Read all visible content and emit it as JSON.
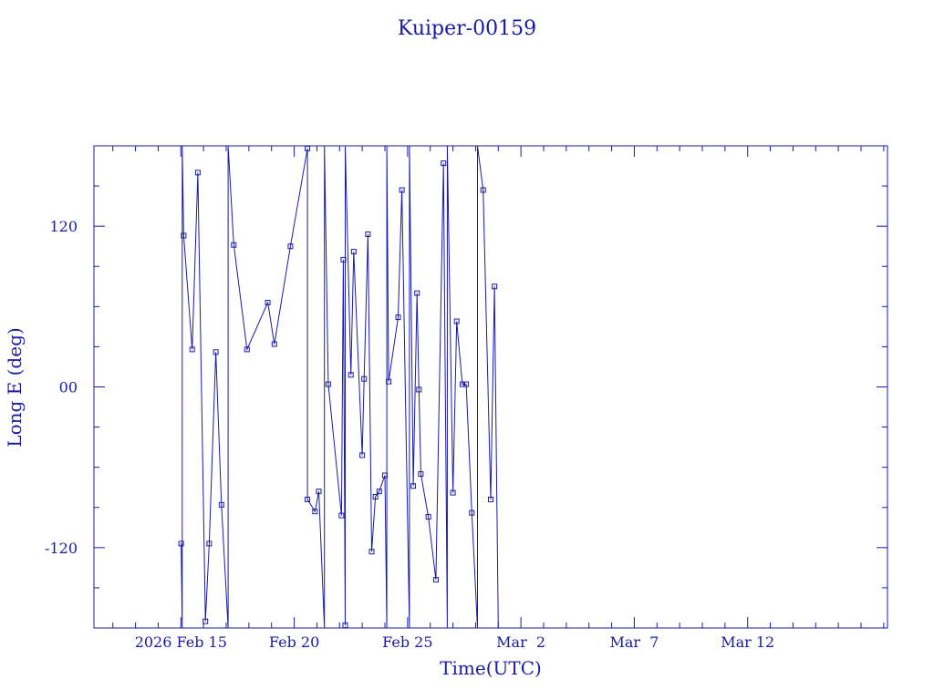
{
  "chart_data": {
    "type": "line",
    "title": "Kuiper-00159",
    "xlabel": "Time(UTC)",
    "ylabel": "Long E (deg)",
    "markers": "square",
    "color": "#1a1aa6",
    "grid": false,
    "xlim": [
      "2026-02-11T04:00",
      "2026-03-18T04:00"
    ],
    "ylim": [
      -180,
      180
    ],
    "x_tick_labels": [
      {
        "date": "2026-02-15",
        "label": "2026 Feb 15"
      },
      {
        "date": "2026-02-20",
        "label": "Feb 20"
      },
      {
        "date": "2026-02-25",
        "label": "Feb 25"
      },
      {
        "date": "2026-03-02",
        "label": "Mar  2"
      },
      {
        "date": "2026-03-07",
        "label": "Mar  7"
      },
      {
        "date": "2026-03-12",
        "label": "Mar 12"
      }
    ],
    "y_tick_labels": [
      {
        "value": -120,
        "label": "-120"
      },
      {
        "value": 0,
        "label": "00"
      },
      {
        "value": 120,
        "label": "120"
      }
    ],
    "series": [
      {
        "points": [
          [
            "2026-02-15T00:20",
            -117
          ],
          [
            "2026-02-15T01:30",
            -180
          ],
          [
            "2026-02-15T01:30",
            180
          ],
          [
            "2026-02-15T03:00",
            113
          ],
          [
            "2026-02-15T12:00",
            28
          ],
          [
            "2026-02-15T18:00",
            160
          ],
          [
            "2026-02-16T02:00",
            -175
          ],
          [
            "2026-02-16T06:00",
            -117
          ],
          [
            "2026-02-16T13:00",
            26
          ],
          [
            "2026-02-16T19:00",
            -88
          ],
          [
            "2026-02-17T02:00",
            -180
          ],
          [
            "2026-02-17T02:00",
            180
          ],
          [
            "2026-02-17T08:00",
            106
          ],
          [
            "2026-02-17T22:00",
            28
          ],
          [
            "2026-02-18T20:00",
            63
          ],
          [
            "2026-02-19T03:00",
            32
          ],
          [
            "2026-02-19T20:00",
            105
          ],
          [
            "2026-02-20T14:00",
            178
          ],
          [
            "2026-02-20T14:00",
            -84
          ],
          [
            "2026-02-20T22:00",
            -93
          ],
          [
            "2026-02-21T02:00",
            -78
          ],
          [
            "2026-02-21T08:00",
            -180
          ],
          [
            "2026-02-21T08:00",
            180
          ],
          [
            "2026-02-21T12:00",
            2
          ],
          [
            "2026-02-22T02:00",
            -96
          ],
          [
            "2026-02-22T04:00",
            95
          ],
          [
            "2026-02-22T06:00",
            -178
          ],
          [
            "2026-02-22T06:00",
            180
          ],
          [
            "2026-02-22T12:00",
            9
          ],
          [
            "2026-02-22T15:00",
            101
          ],
          [
            "2026-02-23T00:00",
            -51
          ],
          [
            "2026-02-23T02:00",
            6
          ],
          [
            "2026-02-23T06:00",
            114
          ],
          [
            "2026-02-23T10:00",
            -123
          ],
          [
            "2026-02-23T14:00",
            -82
          ],
          [
            "2026-02-23T18:00",
            -78
          ],
          [
            "2026-02-24T00:00",
            -66
          ],
          [
            "2026-02-24T02:00",
            -180
          ],
          [
            "2026-02-24T02:00",
            180
          ],
          [
            "2026-02-24T04:00",
            4
          ],
          [
            "2026-02-24T14:00",
            52
          ],
          [
            "2026-02-24T18:00",
            147
          ],
          [
            "2026-02-25T02:00",
            -180
          ],
          [
            "2026-02-25T02:00",
            180
          ],
          [
            "2026-02-25T06:00",
            -74
          ],
          [
            "2026-02-25T10:00",
            70
          ],
          [
            "2026-02-25T12:00",
            -2
          ],
          [
            "2026-02-25T14:00",
            -65
          ],
          [
            "2026-02-25T22:00",
            -97
          ],
          [
            "2026-02-26T06:00",
            -144
          ],
          [
            "2026-02-26T14:00",
            167
          ],
          [
            "2026-02-26T18:00",
            -180
          ],
          [
            "2026-02-26T18:00",
            180
          ],
          [
            "2026-02-27T00:00",
            -79
          ],
          [
            "2026-02-27T04:00",
            49
          ],
          [
            "2026-02-27T10:00",
            2
          ],
          [
            "2026-02-27T14:00",
            2
          ],
          [
            "2026-02-27T20:00",
            -94
          ],
          [
            "2026-02-28T02:00",
            -180
          ],
          [
            "2026-02-28T02:00",
            180
          ],
          [
            "2026-02-28T08:00",
            147
          ],
          [
            "2026-02-28T16:00",
            -84
          ],
          [
            "2026-02-28T20:00",
            75
          ],
          [
            "2026-02-29T00:00",
            -180
          ]
        ]
      }
    ]
  }
}
